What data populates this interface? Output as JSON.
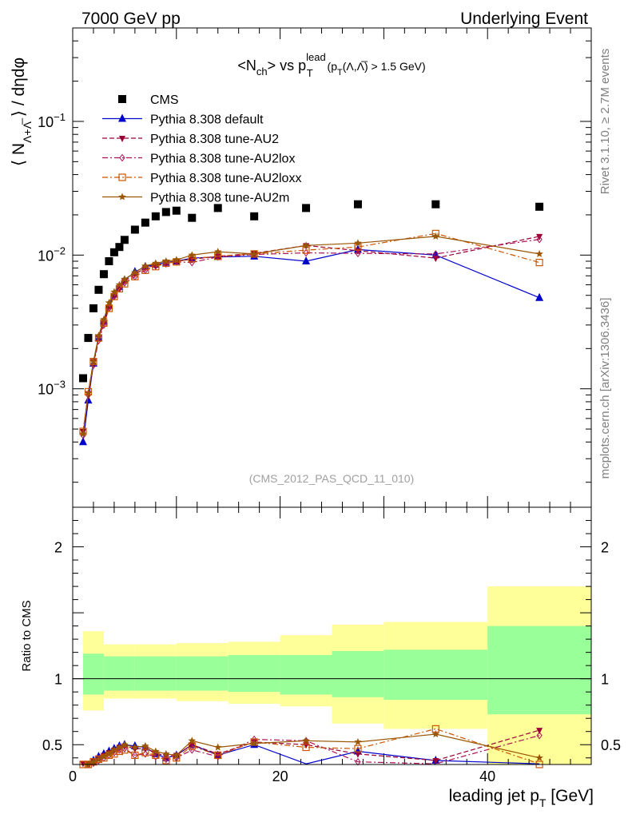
{
  "header": {
    "left": "7000 GeV pp",
    "right": "Underlying Event"
  },
  "side_labels": {
    "rivet": "Rivet 3.1.10, ≥ 2.7M events",
    "mcplots": "mcplots.cern.ch [arXiv:1306.3436]"
  },
  "chart_data": [
    {
      "type": "scatter",
      "title": "<Nch> vs pT lead (pT(Λ,Λ̅) > 1.5 GeV)",
      "title_parts": {
        "lhs": "<N",
        "lhs_sub": "ch",
        "mid": "> vs p",
        "mid_sup": "lead",
        "mid_sub": "T",
        "cut": " (p",
        "cut_sub": "T",
        "cut_rest": "(Λ,Λ̅) > 1.5 GeV)"
      },
      "ylabel": "⟨ NΛ+Λ̅ ⟩ / dηdφ",
      "ylabel_parts": {
        "open": "⟨ N",
        "sub": "Λ+Λ̅",
        "close": " ⟩ / dηdφ"
      },
      "xlabel": "",
      "yscale": "log",
      "xlim": [
        0,
        50
      ],
      "ylim": [
        0.00013,
        0.5
      ],
      "ytick_labels": [
        {
          "value": 0.001,
          "base": "10",
          "exp": "−3"
        },
        {
          "value": 0.01,
          "base": "10",
          "exp": "−2"
        },
        {
          "value": 0.1,
          "base": "10",
          "exp": "−1"
        }
      ],
      "watermark": "(CMS_2012_PAS_QCD_11_010)",
      "legend_position": "top-left",
      "series": [
        {
          "name": "CMS",
          "color": "#000000",
          "marker": "square-filled",
          "line": "none",
          "x": [
            1.0,
            1.5,
            2.0,
            2.5,
            3.0,
            3.5,
            4.0,
            4.5,
            5.0,
            6.0,
            7.0,
            8.0,
            9.0,
            10.0,
            11.5,
            14.0,
            17.5,
            22.5,
            27.5,
            35.0,
            45.0
          ],
          "y": [
            0.0012,
            0.0024,
            0.004,
            0.0055,
            0.0072,
            0.009,
            0.0105,
            0.0115,
            0.013,
            0.0155,
            0.0175,
            0.0195,
            0.021,
            0.0215,
            0.019,
            0.0225,
            0.0195,
            0.0225,
            0.024,
            0.024,
            0.023
          ]
        },
        {
          "name": "Pythia 8.308 default",
          "color": "#0000cc",
          "marker": "triangle-filled",
          "line": "solid",
          "x": [
            1.0,
            1.5,
            2.0,
            2.5,
            3.0,
            3.5,
            4.0,
            4.5,
            5.0,
            6.0,
            7.0,
            8.0,
            9.0,
            10.0,
            11.5,
            14.0,
            17.5,
            22.5,
            27.5,
            35.0,
            45.0
          ],
          "y": [
            0.0004,
            0.00082,
            0.00155,
            0.0024,
            0.0032,
            0.0042,
            0.0051,
            0.0058,
            0.0065,
            0.0075,
            0.0082,
            0.0085,
            0.0088,
            0.009,
            0.0095,
            0.0097,
            0.0098,
            0.009,
            0.011,
            0.01,
            0.0048
          ]
        },
        {
          "name": "Pythia 8.308 tune-AU2",
          "color": "#990033",
          "marker": "triangle-down-filled",
          "line": "dashed",
          "x": [
            1.0,
            1.5,
            2.0,
            2.5,
            3.0,
            3.5,
            4.0,
            4.5,
            5.0,
            6.0,
            7.0,
            8.0,
            9.0,
            10.0,
            11.5,
            14.0,
            17.5,
            22.5,
            27.5,
            35.0,
            45.0
          ],
          "y": [
            0.00048,
            0.00092,
            0.0016,
            0.0024,
            0.0031,
            0.0041,
            0.005,
            0.0057,
            0.0064,
            0.0072,
            0.008,
            0.0084,
            0.0087,
            0.009,
            0.0093,
            0.0098,
            0.0103,
            0.0118,
            0.0108,
            0.0095,
            0.0138
          ]
        },
        {
          "name": "Pythia 8.308 tune-AU2lox",
          "color": "#aa1155",
          "marker": "diamond-open",
          "line": "dashdot",
          "x": [
            1.0,
            1.5,
            2.0,
            2.5,
            3.0,
            3.5,
            4.0,
            4.5,
            5.0,
            6.0,
            7.0,
            8.0,
            9.0,
            10.0,
            11.5,
            14.0,
            17.5,
            22.5,
            27.5,
            35.0,
            45.0
          ],
          "y": [
            0.00045,
            0.0009,
            0.0015,
            0.0023,
            0.003,
            0.004,
            0.0049,
            0.0056,
            0.0062,
            0.0069,
            0.0077,
            0.0083,
            0.0086,
            0.0089,
            0.0088,
            0.0097,
            0.0101,
            0.0104,
            0.0103,
            0.0102,
            0.0131
          ]
        },
        {
          "name": "Pythia 8.308 tune-AU2loxx",
          "color": "#cc5500",
          "marker": "square-open",
          "line": "dashdot",
          "x": [
            1.0,
            1.5,
            2.0,
            2.5,
            3.0,
            3.5,
            4.0,
            4.5,
            5.0,
            6.0,
            7.0,
            8.0,
            9.0,
            10.0,
            11.5,
            14.0,
            17.5,
            22.5,
            27.5,
            35.0,
            45.0
          ],
          "y": [
            0.00048,
            0.00095,
            0.0016,
            0.0024,
            0.0031,
            0.004,
            0.0049,
            0.0056,
            0.0061,
            0.0069,
            0.0077,
            0.0082,
            0.0087,
            0.0089,
            0.0094,
            0.0098,
            0.0102,
            0.0109,
            0.0115,
            0.0145,
            0.0088
          ]
        },
        {
          "name": "Pythia 8.308 tune-AU2m",
          "color": "#995500",
          "marker": "star",
          "line": "solid",
          "x": [
            1.0,
            1.5,
            2.0,
            2.5,
            3.0,
            3.5,
            4.0,
            4.5,
            5.0,
            6.0,
            7.0,
            8.0,
            9.0,
            10.0,
            11.5,
            14.0,
            17.5,
            22.5,
            27.5,
            35.0,
            45.0
          ],
          "y": [
            0.00046,
            0.00093,
            0.0016,
            0.0025,
            0.0033,
            0.0044,
            0.0053,
            0.006,
            0.0066,
            0.0074,
            0.0083,
            0.0087,
            0.009,
            0.0092,
            0.01,
            0.0106,
            0.0102,
            0.0118,
            0.0123,
            0.0138,
            0.0102
          ]
        }
      ]
    },
    {
      "type": "line",
      "title": "",
      "xlabel": "leading jet pT [GeV]",
      "xlabel_parts": {
        "main": "leading jet p",
        "sub": "T",
        "unit": " [GeV]"
      },
      "ylabel": "Ratio to CMS",
      "xlim": [
        0,
        50
      ],
      "ylim": [
        0.35,
        2.3
      ],
      "xticks": [
        0,
        20,
        40
      ],
      "yticks": [
        0.5,
        1,
        2
      ],
      "reference_line": 1,
      "band_colors": {
        "inner": "#99ff99",
        "outer": "#ffff99"
      },
      "bands": [
        {
          "x0": 1.0,
          "x1": 3.0,
          "inner": [
            0.88,
            1.19
          ],
          "outer": [
            0.76,
            1.36
          ]
        },
        {
          "x0": 3.0,
          "x1": 6.0,
          "inner": [
            0.91,
            1.17
          ],
          "outer": [
            0.85,
            1.26
          ]
        },
        {
          "x0": 6.0,
          "x1": 10.0,
          "inner": [
            0.91,
            1.17
          ],
          "outer": [
            0.85,
            1.26
          ]
        },
        {
          "x0": 10.0,
          "x1": 15.0,
          "inner": [
            0.91,
            1.17
          ],
          "outer": [
            0.83,
            1.27
          ]
        },
        {
          "x0": 15.0,
          "x1": 20.0,
          "inner": [
            0.9,
            1.18
          ],
          "outer": [
            0.81,
            1.28
          ]
        },
        {
          "x0": 20.0,
          "x1": 25.0,
          "inner": [
            0.88,
            1.18
          ],
          "outer": [
            0.79,
            1.33
          ]
        },
        {
          "x0": 25.0,
          "x1": 30.0,
          "inner": [
            0.86,
            1.21
          ],
          "outer": [
            0.66,
            1.41
          ]
        },
        {
          "x0": 30.0,
          "x1": 40.0,
          "inner": [
            0.84,
            1.22
          ],
          "outer": [
            0.62,
            1.43
          ]
        },
        {
          "x0": 40.0,
          "x1": 50.0,
          "inner": [
            0.73,
            1.4
          ],
          "outer": [
            0.35,
            1.7
          ]
        }
      ],
      "series": [
        {
          "name": "Pythia 8.308 default",
          "x": [
            1.0,
            1.5,
            2.0,
            2.5,
            3.0,
            3.5,
            4.0,
            4.5,
            5.0,
            6.0,
            7.0,
            8.0,
            9.0,
            10.0,
            11.5,
            14.0,
            17.5,
            22.5,
            27.5,
            35.0,
            45.0
          ],
          "y": [
            0.33,
            0.34,
            0.38,
            0.41,
            0.43,
            0.45,
            0.47,
            0.49,
            0.5,
            0.49,
            0.48,
            0.43,
            0.4,
            0.42,
            0.5,
            0.42,
            0.5,
            0.33,
            0.45,
            0.38,
            0.21
          ]
        },
        {
          "name": "Pythia 8.308 tune-AU2",
          "x": [
            1.0,
            1.5,
            2.0,
            2.5,
            3.0,
            3.5,
            4.0,
            4.5,
            5.0,
            6.0,
            7.0,
            8.0,
            9.0,
            10.0,
            11.5,
            14.0,
            17.5,
            22.5,
            27.5,
            35.0,
            45.0
          ],
          "y": [
            0.36,
            0.36,
            0.38,
            0.4,
            0.42,
            0.44,
            0.46,
            0.48,
            0.49,
            0.47,
            0.47,
            0.44,
            0.41,
            0.42,
            0.5,
            0.43,
            0.52,
            0.5,
            0.43,
            0.38,
            0.61
          ]
        },
        {
          "name": "Pythia 8.308 tune-AU2lox",
          "x": [
            1.0,
            1.5,
            2.0,
            2.5,
            3.0,
            3.5,
            4.0,
            4.5,
            5.0,
            6.0,
            7.0,
            8.0,
            9.0,
            10.0,
            11.5,
            14.0,
            17.5,
            22.5,
            27.5,
            35.0,
            45.0
          ],
          "y": [
            0.34,
            0.35,
            0.36,
            0.38,
            0.4,
            0.42,
            0.44,
            0.46,
            0.47,
            0.42,
            0.43,
            0.41,
            0.39,
            0.4,
            0.46,
            0.41,
            0.54,
            0.53,
            0.37,
            0.3,
            0.57
          ]
        },
        {
          "name": "Pythia 8.308 tune-AU2loxx",
          "x": [
            1.0,
            1.5,
            2.0,
            2.5,
            3.0,
            3.5,
            4.0,
            4.5,
            5.0,
            6.0,
            7.0,
            8.0,
            9.0,
            10.0,
            11.5,
            14.0,
            17.5,
            22.5,
            27.5,
            35.0,
            45.0
          ],
          "y": [
            0.35,
            0.35,
            0.37,
            0.39,
            0.4,
            0.42,
            0.43,
            0.45,
            0.46,
            0.42,
            0.44,
            0.42,
            0.38,
            0.4,
            0.49,
            0.42,
            0.52,
            0.48,
            0.47,
            0.62,
            0.35
          ]
        },
        {
          "name": "Pythia 8.308 tune-AU2m",
          "x": [
            1.0,
            1.5,
            2.0,
            2.5,
            3.0,
            3.5,
            4.0,
            4.5,
            5.0,
            6.0,
            7.0,
            8.0,
            9.0,
            10.0,
            11.5,
            14.0,
            17.5,
            22.5,
            27.5,
            35.0,
            45.0
          ],
          "y": [
            0.34,
            0.35,
            0.37,
            0.39,
            0.41,
            0.43,
            0.46,
            0.48,
            0.5,
            0.48,
            0.49,
            0.45,
            0.43,
            0.42,
            0.53,
            0.48,
            0.51,
            0.53,
            0.52,
            0.58,
            0.4
          ]
        }
      ]
    }
  ]
}
